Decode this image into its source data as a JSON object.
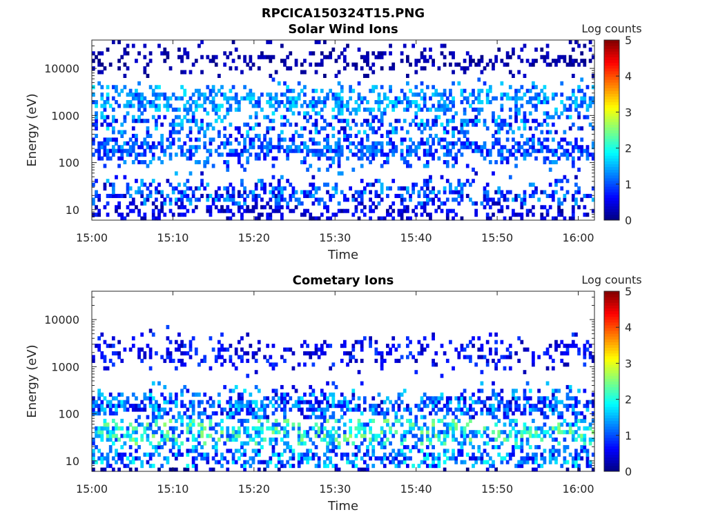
{
  "figure": {
    "title": "RPCICA150324T15.PNG"
  },
  "chart_data": [
    {
      "type": "heatmap",
      "title": "Solar Wind Ions",
      "xlabel": "Time",
      "ylabel": "Energy (eV)",
      "x_range": [
        "15:00",
        "16:02"
      ],
      "x_ticks": [
        "15:00",
        "15:10",
        "15:20",
        "15:30",
        "15:40",
        "15:50",
        "16:00"
      ],
      "y_scale": "log",
      "y_range": [
        6,
        40000
      ],
      "y_ticks": [
        "10",
        "100",
        "1000",
        "10000"
      ],
      "colorbar": {
        "label": "Log counts",
        "range": [
          0,
          5
        ],
        "ticks": [
          "0",
          "1",
          "2",
          "3",
          "4",
          "5"
        ],
        "colormap": "jet"
      },
      "grid": false,
      "description_of_values": "log10 counts per time/energy bin; sparse, dominant populations near 100-300 eV and a narrow band near 2000 eV",
      "bands": [
        {
          "energy_eV": 2000,
          "log_counts": [
            1.8,
            0.8
          ],
          "occupancy": 0.55
        },
        {
          "energy_eV": 200,
          "log_counts": [
            0.5,
            1.5
          ],
          "occupancy": 0.55
        },
        {
          "energy_eV": 700,
          "log_counts": [
            0.3,
            1.8
          ],
          "occupancy": 0.35
        },
        {
          "energy_eV": 20,
          "log_counts": [
            0.2,
            1.6
          ],
          "occupancy": 0.45
        },
        {
          "energy_eV": 8,
          "log_counts": [
            0.1,
            0.8
          ],
          "occupancy": 0.35
        },
        {
          "energy_eV": 15000,
          "log_counts": [
            0.0,
            0.4
          ],
          "occupancy": 0.3
        }
      ]
    },
    {
      "type": "heatmap",
      "title": "Cometary Ions",
      "xlabel": "Time",
      "ylabel": "Energy (eV)",
      "x_range": [
        "15:00",
        "16:02"
      ],
      "x_ticks": [
        "15:00",
        "15:10",
        "15:20",
        "15:30",
        "15:40",
        "15:50",
        "16:00"
      ],
      "y_scale": "log",
      "y_range": [
        6,
        40000
      ],
      "y_ticks": [
        "10",
        "100",
        "1000",
        "10000"
      ],
      "colorbar": {
        "label": "Log counts",
        "range": [
          0,
          5
        ],
        "ticks": [
          "0",
          "1",
          "2",
          "3",
          "4",
          "5"
        ],
        "colormap": "jet"
      },
      "grid": false,
      "description_of_values": "log10 counts per time/energy bin; strongest near 20-100 eV, sparse band near 2000 eV",
      "bands": [
        {
          "energy_eV": 150,
          "log_counts": [
            0.3,
            1.8
          ],
          "occupancy": 0.6
        },
        {
          "energy_eV": 40,
          "log_counts": [
            0.8,
            2.6
          ],
          "occupancy": 0.55
        },
        {
          "energy_eV": 12,
          "log_counts": [
            0.4,
            2.0
          ],
          "occupancy": 0.5
        },
        {
          "energy_eV": 2000,
          "log_counts": [
            0.2,
            1.0
          ],
          "occupancy": 0.3
        },
        {
          "energy_eV": 7,
          "log_counts": [
            0.0,
            0.6
          ],
          "occupancy": 0.25
        }
      ]
    }
  ]
}
